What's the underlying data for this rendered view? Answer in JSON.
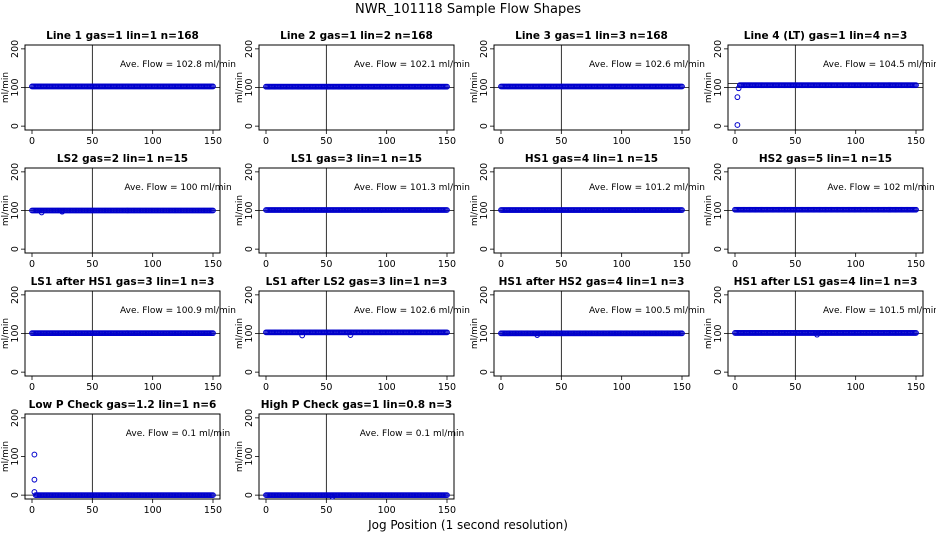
{
  "figure": {
    "title": "NWR_101118  Sample Flow Shapes",
    "xlabel": "Jog Position (1 second resolution)"
  },
  "chart_data": [
    {
      "type": "scatter",
      "title": "Line 1 gas=1 lin=1 n=168",
      "ylabel": "ml/min",
      "annotation": "Ave. Flow =  102.8  ml/min",
      "xlim": [
        0,
        150
      ],
      "ylim": [
        -10,
        210
      ],
      "xticks": [
        0,
        50,
        100,
        150
      ],
      "yticks": [
        0,
        100,
        200
      ],
      "hlines": [
        100
      ],
      "vline": 50,
      "series": [
        {
          "name": "flow",
          "x_range": [
            0,
            150
          ],
          "y": 102.8,
          "dips": []
        }
      ]
    },
    {
      "type": "scatter",
      "title": "Line 2 gas=1 lin=2 n=168",
      "ylabel": "ml/min",
      "annotation": "Ave. Flow =  102.1  ml/min",
      "xlim": [
        0,
        150
      ],
      "ylim": [
        -10,
        210
      ],
      "xticks": [
        0,
        50,
        100,
        150
      ],
      "yticks": [
        0,
        100,
        200
      ],
      "hlines": [
        100
      ],
      "vline": 50,
      "series": [
        {
          "name": "flow",
          "x_range": [
            0,
            150
          ],
          "y": 102.1,
          "dips": []
        }
      ]
    },
    {
      "type": "scatter",
      "title": "Line 3 gas=1 lin=3 n=168",
      "ylabel": "ml/min",
      "annotation": "Ave. Flow =  102.6  ml/min",
      "xlim": [
        0,
        150
      ],
      "ylim": [
        -10,
        210
      ],
      "xticks": [
        0,
        50,
        100,
        150
      ],
      "yticks": [
        0,
        100,
        200
      ],
      "hlines": [
        100
      ],
      "vline": 50,
      "series": [
        {
          "name": "flow",
          "x_range": [
            0,
            150
          ],
          "y": 102.6,
          "dips": []
        }
      ]
    },
    {
      "type": "scatter",
      "title": "Line 4 (LT) gas=1 lin=4 n=3",
      "ylabel": "ml/min",
      "annotation": "Ave. Flow =  104.5  ml/min",
      "xlim": [
        0,
        150
      ],
      "ylim": [
        -10,
        210
      ],
      "xticks": [
        0,
        50,
        100,
        150
      ],
      "yticks": [
        0,
        100,
        200
      ],
      "hlines": [
        100,
        110
      ],
      "vline": 50,
      "series": [
        {
          "name": "flow",
          "x_range": [
            4,
            150
          ],
          "y": 106,
          "dips": [
            {
              "x": 2,
              "y": 3
            },
            {
              "x": 2,
              "y": 75
            },
            {
              "x": 3,
              "y": 98
            }
          ]
        }
      ]
    },
    {
      "type": "scatter",
      "title": "LS2 gas=2 lin=1 n=15",
      "ylabel": "ml/min",
      "annotation": "Ave. Flow =  100  ml/min",
      "xlim": [
        0,
        150
      ],
      "ylim": [
        -10,
        210
      ],
      "xticks": [
        0,
        50,
        100,
        150
      ],
      "yticks": [
        0,
        100,
        200
      ],
      "hlines": [
        100
      ],
      "vline": 50,
      "series": [
        {
          "name": "flow",
          "x_range": [
            0,
            150
          ],
          "y": 100,
          "dips": [
            {
              "x": 8,
              "y": 95
            },
            {
              "x": 25,
              "y": 97
            }
          ]
        }
      ]
    },
    {
      "type": "scatter",
      "title": "LS1 gas=3 lin=1 n=15",
      "ylabel": "ml/min",
      "annotation": "Ave. Flow =  101.3  ml/min",
      "xlim": [
        0,
        150
      ],
      "ylim": [
        -10,
        210
      ],
      "xticks": [
        0,
        50,
        100,
        150
      ],
      "yticks": [
        0,
        100,
        200
      ],
      "hlines": [
        100
      ],
      "vline": 50,
      "series": [
        {
          "name": "flow",
          "x_range": [
            0,
            150
          ],
          "y": 101.3,
          "dips": []
        }
      ]
    },
    {
      "type": "scatter",
      "title": "HS1 gas=4 lin=1 n=15",
      "ylabel": "ml/min",
      "annotation": "Ave. Flow =  101.2  ml/min",
      "xlim": [
        0,
        150
      ],
      "ylim": [
        -10,
        210
      ],
      "xticks": [
        0,
        50,
        100,
        150
      ],
      "yticks": [
        0,
        100,
        200
      ],
      "hlines": [
        100
      ],
      "vline": 50,
      "series": [
        {
          "name": "flow",
          "x_range": [
            0,
            150
          ],
          "y": 101.2,
          "dips": []
        }
      ]
    },
    {
      "type": "scatter",
      "title": "HS2 gas=5 lin=1 n=15",
      "ylabel": "ml/min",
      "annotation": "Ave. Flow =  102  ml/min",
      "xlim": [
        0,
        150
      ],
      "ylim": [
        -10,
        210
      ],
      "xticks": [
        0,
        50,
        100,
        150
      ],
      "yticks": [
        0,
        100,
        200
      ],
      "hlines": [
        100
      ],
      "vline": 50,
      "series": [
        {
          "name": "flow",
          "x_range": [
            0,
            150
          ],
          "y": 102,
          "dips": []
        }
      ]
    },
    {
      "type": "scatter",
      "title": "LS1 after HS1 gas=3 lin=1 n=3",
      "ylabel": "ml/min",
      "annotation": "Ave. Flow =  100.9  ml/min",
      "xlim": [
        0,
        150
      ],
      "ylim": [
        -10,
        210
      ],
      "xticks": [
        0,
        50,
        100,
        150
      ],
      "yticks": [
        0,
        100,
        200
      ],
      "hlines": [
        100
      ],
      "vline": 50,
      "series": [
        {
          "name": "flow",
          "x_range": [
            0,
            150
          ],
          "y": 100.9,
          "dips": []
        }
      ]
    },
    {
      "type": "scatter",
      "title": "LS1 after LS2 gas=3 lin=1 n=3",
      "ylabel": "ml/min",
      "annotation": "Ave. Flow =  102.6  ml/min",
      "xlim": [
        0,
        150
      ],
      "ylim": [
        -10,
        210
      ],
      "xticks": [
        0,
        50,
        100,
        150
      ],
      "yticks": [
        0,
        100,
        200
      ],
      "hlines": [
        100
      ],
      "vline": 50,
      "series": [
        {
          "name": "flow",
          "x_range": [
            0,
            150
          ],
          "y": 103,
          "dips": [
            {
              "x": 30,
              "y": 95
            },
            {
              "x": 70,
              "y": 96
            }
          ]
        }
      ]
    },
    {
      "type": "scatter",
      "title": "HS1 after HS2 gas=4 lin=1 n=3",
      "ylabel": "ml/min",
      "annotation": "Ave. Flow =  100.5  ml/min",
      "xlim": [
        0,
        150
      ],
      "ylim": [
        -10,
        210
      ],
      "xticks": [
        0,
        50,
        100,
        150
      ],
      "yticks": [
        0,
        100,
        200
      ],
      "hlines": [
        100
      ],
      "vline": 50,
      "series": [
        {
          "name": "flow",
          "x_range": [
            0,
            150
          ],
          "y": 100.5,
          "dips": [
            {
              "x": 30,
              "y": 96
            }
          ]
        }
      ]
    },
    {
      "type": "scatter",
      "title": "HS1 after LS1 gas=4 lin=1 n=3",
      "ylabel": "ml/min",
      "annotation": "Ave. Flow =  101.5  ml/min",
      "xlim": [
        0,
        150
      ],
      "ylim": [
        -10,
        210
      ],
      "xticks": [
        0,
        50,
        100,
        150
      ],
      "yticks": [
        0,
        100,
        200
      ],
      "hlines": [
        100
      ],
      "vline": 50,
      "series": [
        {
          "name": "flow",
          "x_range": [
            0,
            150
          ],
          "y": 101.5,
          "dips": [
            {
              "x": 68,
              "y": 97
            }
          ]
        }
      ]
    },
    {
      "type": "scatter",
      "title": "Low P Check gas=1.2 lin=1 n=6",
      "ylabel": "ml/min",
      "annotation": "Ave. Flow =  0.1  ml/min",
      "xlim": [
        0,
        150
      ],
      "ylim": [
        -10,
        210
      ],
      "xticks": [
        0,
        50,
        100,
        150
      ],
      "yticks": [
        0,
        100,
        200
      ],
      "hlines": [
        0
      ],
      "vline": 50,
      "series": [
        {
          "name": "flow",
          "x_range": [
            3,
            150
          ],
          "y": 0,
          "dips": [
            {
              "x": 2,
              "y": 105
            },
            {
              "x": 2,
              "y": 40
            },
            {
              "x": 2,
              "y": 8
            }
          ]
        }
      ]
    },
    {
      "type": "scatter",
      "title": "High P Check gas=1 lin=0.8 n=3",
      "ylabel": "ml/min",
      "annotation": "Ave. Flow =  0.1  ml/min",
      "xlim": [
        0,
        150
      ],
      "ylim": [
        -10,
        210
      ],
      "xticks": [
        0,
        50,
        100,
        150
      ],
      "yticks": [
        0,
        100,
        200
      ],
      "hlines": [
        0
      ],
      "vline": 50,
      "series": [
        {
          "name": "flow",
          "x_range": [
            0,
            150
          ],
          "y": 0,
          "dips": [
            {
              "x": 55,
              "y": -4
            }
          ]
        }
      ]
    }
  ],
  "colors": {
    "points": "#0000cc",
    "axes": "#000000"
  }
}
